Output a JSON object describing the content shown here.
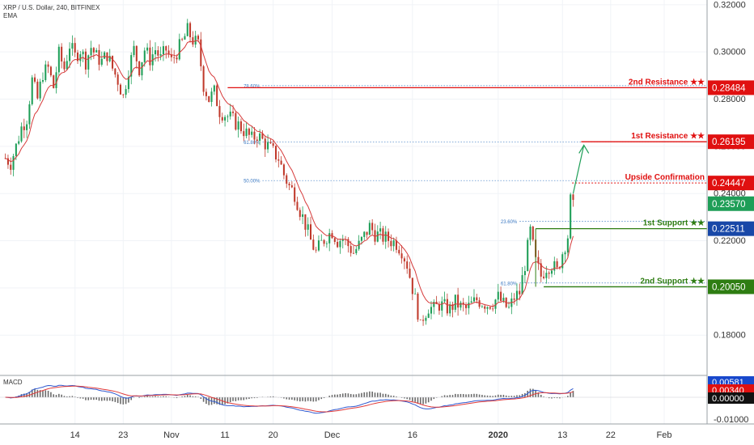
{
  "header": {
    "symbol": "XRP / U.S. Dollar, 240, BITFINEX",
    "indicator": "EMA"
  },
  "macd": {
    "label": "MACD",
    "badges": [
      {
        "text": "0.00581",
        "color": "#1848cc"
      },
      {
        "text": "0.00340",
        "color": "#e01010"
      },
      {
        "text": "0.00000",
        "color": "#111111"
      }
    ],
    "axis": [
      "0.00000",
      "-0.01000"
    ]
  },
  "colors": {
    "up": "#1e9e57",
    "down": "#c0392b",
    "resistance": "#e01010",
    "support": "#2e7d12",
    "fib": "#3a78c2",
    "ema": "#d63a3a",
    "macd_line": "#2f59d0",
    "signal_line": "#e03a3a"
  },
  "chart_data": {
    "type": "candlestick",
    "title": "XRP / U.S. Dollar, 240, BITFINEX",
    "ylim": [
      0.165,
      0.322
    ],
    "y_ticks": [
      "0.32000",
      "0.30000",
      "0.28000",
      "0.26000",
      "0.24000",
      "0.22000",
      "0.20000",
      "0.18000"
    ],
    "y_tick_values": [
      0.32,
      0.3,
      0.28,
      0.26,
      0.24,
      0.22,
      0.2,
      0.18
    ],
    "x_ticks": [
      "14",
      "23",
      "Nov",
      "11",
      "20",
      "Dec",
      "16",
      "2020",
      "13",
      "22",
      "Feb"
    ],
    "x_tick_days": [
      13,
      22,
      31,
      41,
      50,
      61,
      76,
      92,
      104,
      113,
      123
    ],
    "x_range_days": [
      -1,
      131
    ],
    "x_ref": "2019-10-01",
    "price_path": [
      [
        0,
        0.255
      ],
      [
        1,
        0.253
      ],
      [
        2,
        0.26
      ],
      [
        3,
        0.268
      ],
      [
        4,
        0.272
      ],
      [
        5,
        0.288
      ],
      [
        6,
        0.28
      ],
      [
        7,
        0.291
      ],
      [
        8,
        0.293
      ],
      [
        9,
        0.285
      ],
      [
        10,
        0.299
      ],
      [
        11,
        0.293
      ],
      [
        12,
        0.303
      ],
      [
        13,
        0.298
      ],
      [
        14,
        0.301
      ],
      [
        15,
        0.296
      ],
      [
        16,
        0.302
      ],
      [
        17,
        0.298
      ],
      [
        18,
        0.296
      ],
      [
        19,
        0.299
      ],
      [
        20,
        0.293
      ],
      [
        21,
        0.288
      ],
      [
        22,
        0.281
      ],
      [
        23,
        0.293
      ],
      [
        24,
        0.301
      ],
      [
        25,
        0.293
      ],
      [
        26,
        0.301
      ],
      [
        27,
        0.297
      ],
      [
        28,
        0.301
      ],
      [
        29,
        0.297
      ],
      [
        30,
        0.301
      ],
      [
        31,
        0.296
      ],
      [
        32,
        0.3
      ],
      [
        33,
        0.304
      ],
      [
        34,
        0.309
      ],
      [
        35,
        0.305
      ],
      [
        36,
        0.303
      ],
      [
        37,
        0.286
      ],
      [
        38,
        0.28
      ],
      [
        39,
        0.283
      ],
      [
        40,
        0.275
      ],
      [
        42,
        0.272
      ],
      [
        44,
        0.268
      ],
      [
        46,
        0.263
      ],
      [
        47,
        0.265
      ],
      [
        49,
        0.26
      ],
      [
        51,
        0.255
      ],
      [
        52,
        0.248
      ],
      [
        53,
        0.243
      ],
      [
        54,
        0.24
      ],
      [
        55,
        0.233
      ],
      [
        56,
        0.227
      ],
      [
        57,
        0.22
      ],
      [
        58,
        0.215
      ],
      [
        59,
        0.219
      ],
      [
        60,
        0.222
      ],
      [
        61,
        0.224
      ],
      [
        62,
        0.22
      ],
      [
        63,
        0.221
      ],
      [
        64,
        0.218
      ],
      [
        65,
        0.215
      ],
      [
        66,
        0.218
      ],
      [
        67,
        0.222
      ],
      [
        68,
        0.226
      ],
      [
        69,
        0.223
      ],
      [
        70,
        0.222
      ],
      [
        71,
        0.221
      ],
      [
        72,
        0.22
      ],
      [
        73,
        0.219
      ],
      [
        74,
        0.216
      ],
      [
        75,
        0.21
      ],
      [
        76,
        0.2
      ],
      [
        77,
        0.19
      ],
      [
        77.5,
        0.183
      ],
      [
        78,
        0.188
      ],
      [
        79,
        0.192
      ],
      [
        80,
        0.191
      ],
      [
        81,
        0.193
      ],
      [
        82,
        0.192
      ],
      [
        83,
        0.191
      ],
      [
        84,
        0.194
      ],
      [
        85,
        0.192
      ],
      [
        86,
        0.191
      ],
      [
        87,
        0.193
      ],
      [
        88,
        0.195
      ],
      [
        89,
        0.194
      ],
      [
        90,
        0.193
      ],
      [
        91,
        0.194
      ],
      [
        92,
        0.196
      ],
      [
        93,
        0.193
      ],
      [
        94,
        0.191
      ],
      [
        95,
        0.196
      ],
      [
        96,
        0.198
      ],
      [
        97,
        0.21
      ],
      [
        98,
        0.224
      ],
      [
        99,
        0.211
      ],
      [
        100,
        0.205
      ],
      [
        101,
        0.209
      ],
      [
        102,
        0.21
      ],
      [
        103,
        0.207
      ],
      [
        104,
        0.215
      ],
      [
        105,
        0.222
      ],
      [
        105.5,
        0.237
      ],
      [
        106,
        0.234
      ]
    ],
    "ema_period": 9,
    "levels": [
      {
        "name": "2nd Resistance ★★",
        "value": 0.28484,
        "kind": "resistance",
        "price_label": "0.28484"
      },
      {
        "name": "1st Resistance ★★",
        "value": 0.26195,
        "kind": "resistance",
        "price_label": "0.26195"
      },
      {
        "name": "Upside Confirmation",
        "value": 0.24447,
        "kind": "resistance",
        "price_label": "0.24447"
      },
      {
        "name": "",
        "value": 0.2357,
        "kind": "current",
        "price_label": "0.23570"
      },
      {
        "name": "1st Support ★★",
        "value": 0.22511,
        "kind": "support",
        "price_label": "0.22511"
      },
      {
        "name": "2nd Support ★★",
        "value": 0.2005,
        "kind": "support",
        "price_label": "0.20050"
      }
    ],
    "fib_levels": [
      {
        "label": "78.60%",
        "value": 0.2857
      },
      {
        "label": "61.80%",
        "value": 0.2619
      },
      {
        "label": "50.00%",
        "value": 0.2455
      },
      {
        "label": "23.60%",
        "value": 0.2283
      },
      {
        "label": "61.80%",
        "value": 0.2021
      }
    ],
    "arrow": {
      "from_day": 106,
      "from_value": 0.24,
      "to_day": 108,
      "to_value": 0.2605
    }
  }
}
